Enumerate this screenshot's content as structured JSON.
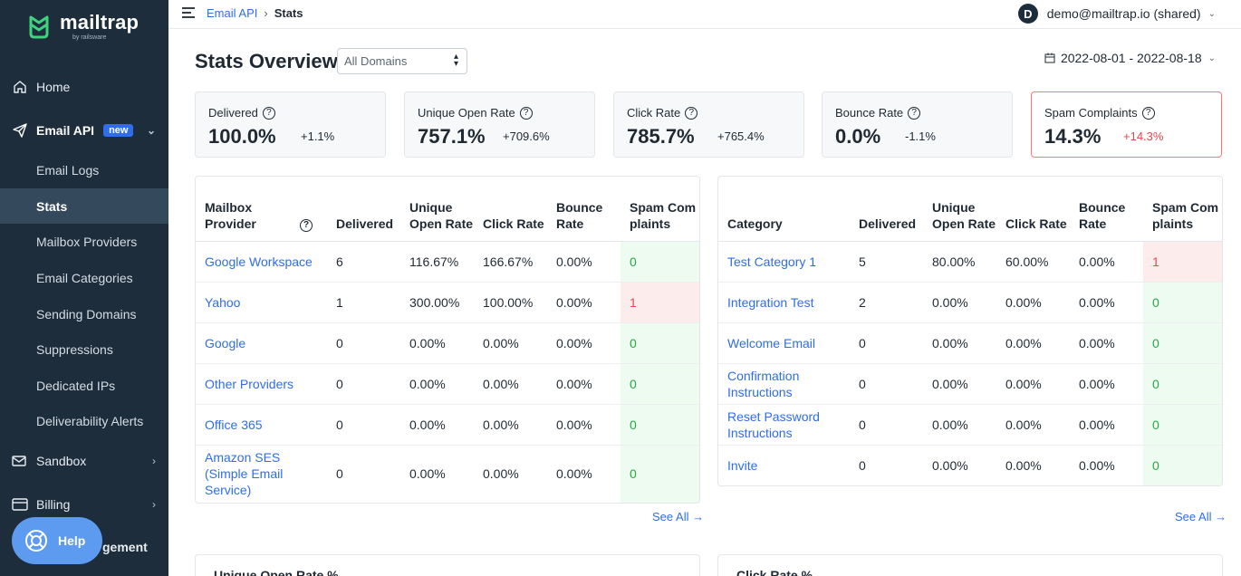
{
  "sidebar": {
    "logo_name": "mailtrap",
    "logo_sub": "by railsware",
    "home": "Home",
    "email_api": "Email API",
    "email_api_badge": "new",
    "sub_items": [
      "Email Logs",
      "Stats",
      "Mailbox Providers",
      "Email Categories",
      "Sending Domains",
      "Suppressions",
      "Dedicated IPs",
      "Deliverability Alerts"
    ],
    "sandbox": "Sandbox",
    "billing": "Billing",
    "account_management_partial": "gement",
    "help": "Help"
  },
  "topbar": {
    "breadcrumb_parent": "Email API",
    "breadcrumb_sep": "›",
    "breadcrumb_current": "Stats",
    "avatar_letter": "D",
    "account": "demo@mailtrap.io (shared)"
  },
  "header": {
    "title": "Stats Overview",
    "domain_select": "All Domains",
    "date_range": "2022-08-01 - 2022-08-18"
  },
  "kpis": [
    {
      "label": "Delivered",
      "value": "100.0%",
      "delta": "+1.1%",
      "alert": false
    },
    {
      "label": "Unique Open Rate",
      "value": "757.1%",
      "delta": "+709.6%",
      "alert": false
    },
    {
      "label": "Click Rate",
      "value": "785.7%",
      "delta": "+765.4%",
      "alert": false
    },
    {
      "label": "Bounce Rate",
      "value": "0.0%",
      "delta": "-1.1%",
      "alert": false
    },
    {
      "label": "Spam Complaints",
      "value": "14.3%",
      "delta": "+14.3%",
      "alert": true
    }
  ],
  "providers_table": {
    "headers": [
      "Mailbox Provider",
      "Delivered",
      "Unique Open Rate",
      "Click Rate",
      "Bounce Rate",
      "Spam Complaints"
    ],
    "rows": [
      [
        "Google Workspace",
        "6",
        "116.67%",
        "166.67%",
        "0.00%",
        "0"
      ],
      [
        "Yahoo",
        "1",
        "300.00%",
        "100.00%",
        "0.00%",
        "1"
      ],
      [
        "Google",
        "0",
        "0.00%",
        "0.00%",
        "0.00%",
        "0"
      ],
      [
        "Other Providers",
        "0",
        "0.00%",
        "0.00%",
        "0.00%",
        "0"
      ],
      [
        "Office 365",
        "0",
        "0.00%",
        "0.00%",
        "0.00%",
        "0"
      ],
      [
        "Amazon SES (Simple Email Service)",
        "0",
        "0.00%",
        "0.00%",
        "0.00%",
        "0"
      ]
    ],
    "see_all": "See All →"
  },
  "categories_table": {
    "headers": [
      "Category",
      "Delivered",
      "Unique Open Rate",
      "Click Rate",
      "Bounce Rate",
      "Spam Complaints"
    ],
    "rows": [
      [
        "Test Category 1",
        "5",
        "80.00%",
        "60.00%",
        "0.00%",
        "1"
      ],
      [
        "Integration Test",
        "2",
        "0.00%",
        "0.00%",
        "0.00%",
        "0"
      ],
      [
        "Welcome Email",
        "0",
        "0.00%",
        "0.00%",
        "0.00%",
        "0"
      ],
      [
        "Confirmation Instructions",
        "0",
        "0.00%",
        "0.00%",
        "0.00%",
        "0"
      ],
      [
        "Reset Password Instructions",
        "0",
        "0.00%",
        "0.00%",
        "0.00%",
        "0"
      ],
      [
        "Invite",
        "0",
        "0.00%",
        "0.00%",
        "0.00%",
        "0"
      ]
    ],
    "see_all": "See All →"
  },
  "charts": {
    "left_title": "Unique Open Rate %",
    "right_title": "Click Rate %"
  },
  "colors": {
    "sidebar_bg": "#1e2d3b",
    "link": "#2f6dea",
    "spam_bad": "#e5484d",
    "spam_ok": "#27a844"
  }
}
